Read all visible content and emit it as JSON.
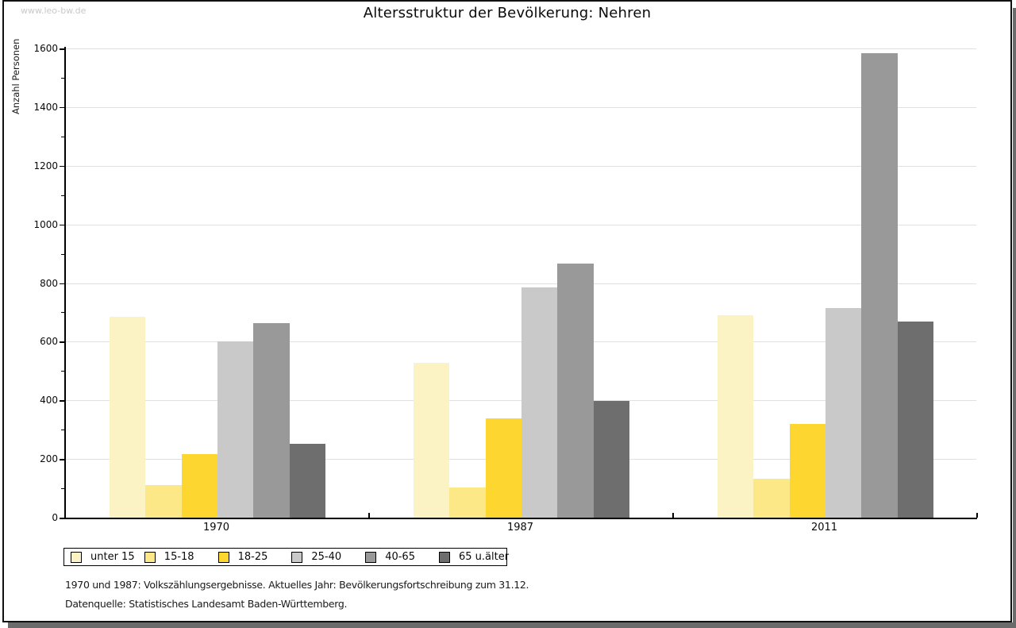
{
  "watermark": "www.leo-bw.de",
  "title": "Altersstruktur der Bevölkerung: Nehren",
  "chart_data": {
    "type": "bar",
    "title": "Altersstruktur der Bevölkerung: Nehren",
    "xlabel": "",
    "ylabel": "Anzahl Personen",
    "ylim": [
      0,
      1600
    ],
    "ytick_step": 200,
    "yminortick_step": 100,
    "grid": true,
    "legend_position": "bottom",
    "categories": [
      "1970",
      "1987",
      "2011"
    ],
    "series": [
      {
        "name": "unter 15",
        "color": "#fbf3c3",
        "values": [
          685,
          528,
          690
        ]
      },
      {
        "name": "15-18",
        "color": "#fce886",
        "values": [
          110,
          104,
          134
        ]
      },
      {
        "name": "18-25",
        "color": "#fdd62f",
        "values": [
          217,
          339,
          319
        ]
      },
      {
        "name": "25-40",
        "color": "#c9c9c9",
        "values": [
          600,
          785,
          716
        ]
      },
      {
        "name": "40-65",
        "color": "#999999",
        "values": [
          663,
          865,
          1585
        ]
      },
      {
        "name": "65 u.älter",
        "color": "#6e6e6e",
        "values": [
          253,
          399,
          668
        ]
      }
    ],
    "colors": {
      "gridline": "#e0e0e0",
      "axis": "#000000"
    }
  },
  "footnotes": [
    "1970 und 1987: Volkszählungsergebnisse. Aktuelles Jahr: Bevölkerungsfortschreibung zum 31.12.",
    "Datenquelle: Statistisches Landesamt Baden-Württemberg."
  ]
}
